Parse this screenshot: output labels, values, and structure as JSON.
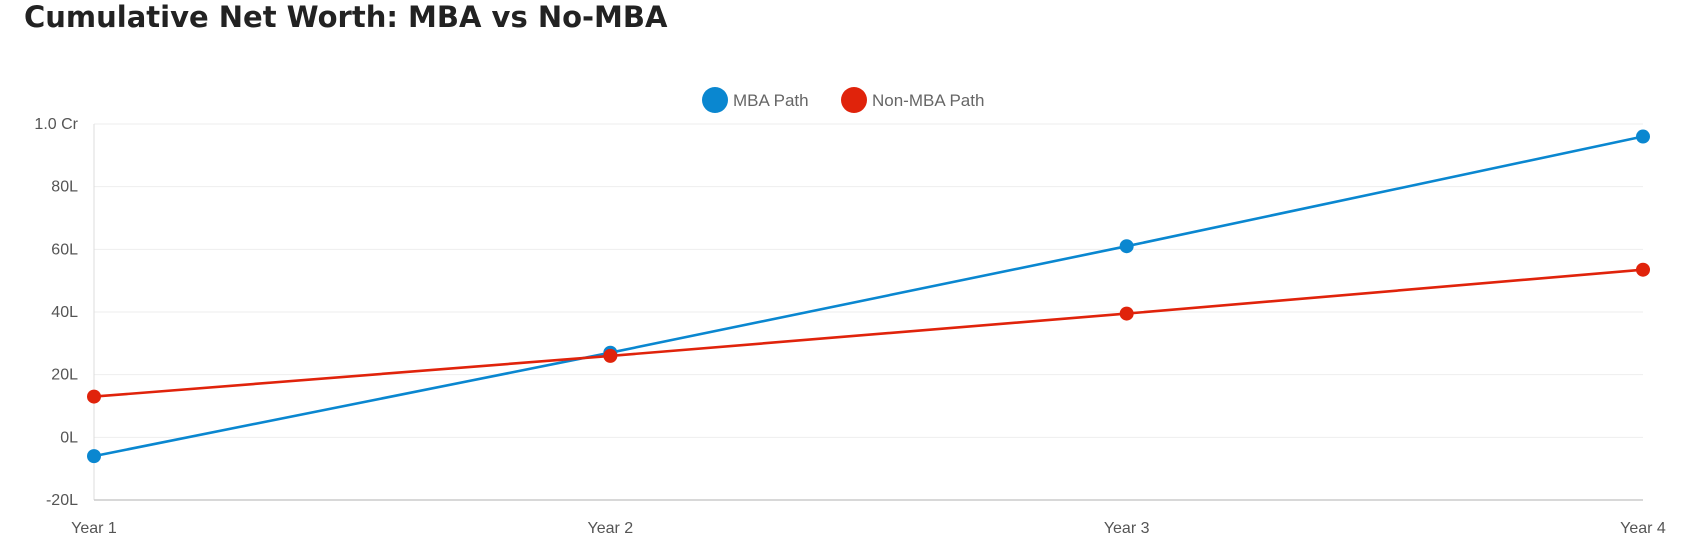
{
  "chart_data": {
    "type": "line",
    "title": "Cumulative Net Worth: MBA vs No-MBA",
    "xlabel": "",
    "ylabel": "",
    "categories": [
      "Year 1",
      "Year 2",
      "Year 3",
      "Year 4"
    ],
    "series": [
      {
        "name": "MBA Path",
        "color": "#0a87d0",
        "values": [
          -6,
          27,
          61,
          96
        ]
      },
      {
        "name": "Non-MBA Path",
        "color": "#e0230b",
        "values": [
          13,
          26,
          39.5,
          53.5
        ]
      }
    ],
    "ylim": [
      -20,
      100
    ],
    "yticks": [
      {
        "value": -20,
        "label": "-20L"
      },
      {
        "value": 0,
        "label": "0L"
      },
      {
        "value": 20,
        "label": "20L"
      },
      {
        "value": 40,
        "label": "40L"
      },
      {
        "value": 60,
        "label": "60L"
      },
      {
        "value": 80,
        "label": "80L"
      },
      {
        "value": 100,
        "label": "1.0 Cr"
      }
    ],
    "grid": true,
    "legend": "top-center"
  }
}
